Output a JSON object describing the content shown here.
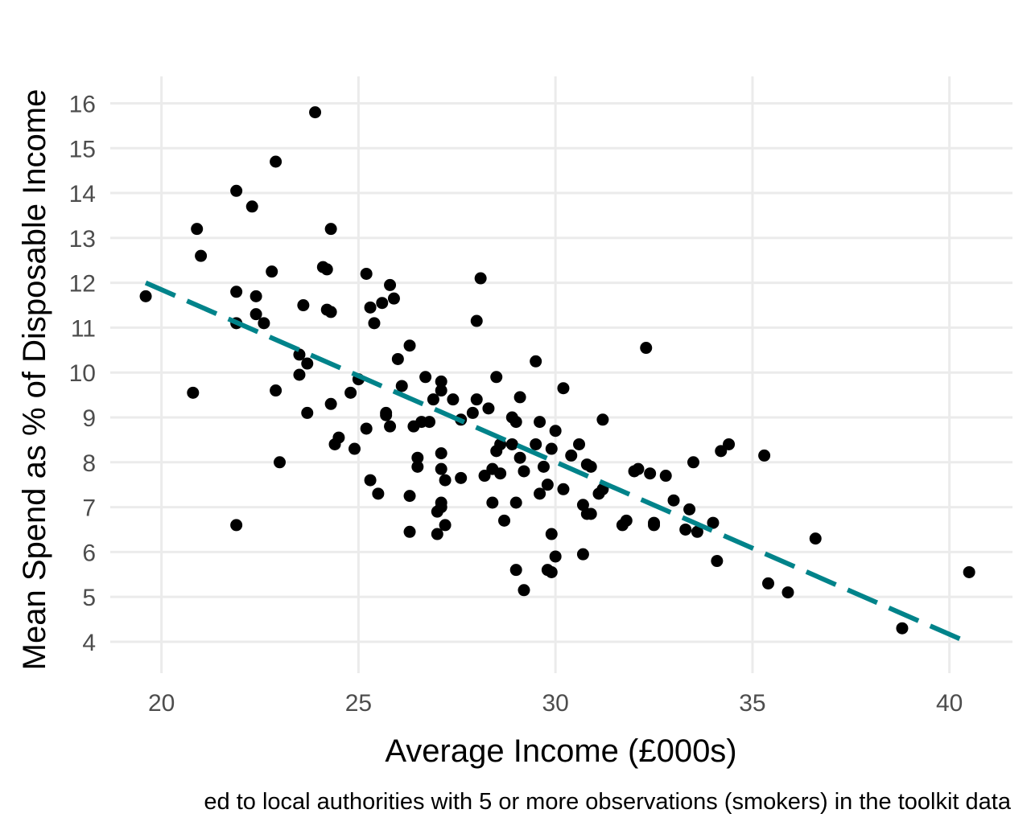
{
  "chart_data": {
    "type": "scatter",
    "xlabel": "Average Income (£000s)",
    "ylabel": "Mean Spend as % of Disposable Income",
    "caption": "ed to local authorities with 5 or more observations (smokers) in the toolkit data",
    "xlim": [
      18.7,
      41.6
    ],
    "ylim": [
      3.3,
      16.6
    ],
    "x_ticks": [
      20,
      25,
      30,
      35,
      40
    ],
    "y_ticks": [
      4,
      5,
      6,
      7,
      8,
      9,
      10,
      11,
      12,
      13,
      14,
      15,
      16
    ],
    "grid": true,
    "point_color": "#000000",
    "trend_line": {
      "style": "dashed",
      "color": "#00838a",
      "x": [
        19.6,
        40.3
      ],
      "y": [
        12.0,
        4.05
      ]
    },
    "points": [
      [
        19.6,
        11.7
      ],
      [
        20.8,
        9.55
      ],
      [
        20.9,
        13.2
      ],
      [
        21.0,
        12.6
      ],
      [
        21.9,
        14.05
      ],
      [
        21.9,
        11.8
      ],
      [
        21.9,
        11.1
      ],
      [
        21.9,
        6.6
      ],
      [
        22.3,
        13.7
      ],
      [
        22.4,
        11.3
      ],
      [
        22.4,
        11.7
      ],
      [
        22.6,
        11.1
      ],
      [
        22.8,
        12.25
      ],
      [
        22.9,
        14.7
      ],
      [
        22.9,
        9.6
      ],
      [
        23.0,
        8.0
      ],
      [
        23.5,
        10.4
      ],
      [
        23.5,
        9.95
      ],
      [
        23.6,
        11.5
      ],
      [
        23.7,
        10.2
      ],
      [
        23.7,
        9.1
      ],
      [
        23.9,
        15.8
      ],
      [
        24.1,
        12.35
      ],
      [
        24.2,
        12.3
      ],
      [
        24.2,
        11.4
      ],
      [
        24.3,
        11.35
      ],
      [
        24.3,
        13.2
      ],
      [
        24.3,
        9.3
      ],
      [
        24.4,
        8.4
      ],
      [
        24.5,
        8.55
      ],
      [
        24.8,
        9.55
      ],
      [
        24.9,
        8.3
      ],
      [
        25.0,
        9.85
      ],
      [
        25.2,
        12.2
      ],
      [
        25.2,
        8.75
      ],
      [
        25.3,
        7.6
      ],
      [
        25.3,
        11.45
      ],
      [
        25.4,
        11.1
      ],
      [
        25.5,
        7.3
      ],
      [
        25.6,
        11.55
      ],
      [
        25.7,
        9.1
      ],
      [
        25.7,
        9.05
      ],
      [
        25.8,
        11.95
      ],
      [
        25.8,
        8.8
      ],
      [
        25.9,
        11.65
      ],
      [
        26.0,
        10.3
      ],
      [
        26.1,
        9.7
      ],
      [
        26.3,
        10.6
      ],
      [
        26.3,
        7.25
      ],
      [
        26.3,
        6.45
      ],
      [
        26.4,
        8.8
      ],
      [
        26.5,
        8.1
      ],
      [
        26.5,
        7.9
      ],
      [
        26.6,
        8.9
      ],
      [
        26.7,
        9.9
      ],
      [
        26.8,
        8.9
      ],
      [
        26.9,
        9.4
      ],
      [
        27.0,
        6.4
      ],
      [
        27.0,
        6.9
      ],
      [
        27.1,
        9.6
      ],
      [
        27.1,
        9.8
      ],
      [
        27.1,
        7.85
      ],
      [
        27.1,
        7.1
      ],
      [
        27.1,
        7.0
      ],
      [
        27.1,
        8.2
      ],
      [
        27.2,
        7.6
      ],
      [
        27.2,
        6.6
      ],
      [
        27.4,
        9.4
      ],
      [
        27.6,
        7.65
      ],
      [
        27.6,
        8.95
      ],
      [
        27.9,
        9.1
      ],
      [
        28.0,
        11.15
      ],
      [
        28.0,
        9.4
      ],
      [
        28.1,
        12.1
      ],
      [
        28.2,
        7.7
      ],
      [
        28.3,
        9.2
      ],
      [
        28.4,
        7.1
      ],
      [
        28.4,
        7.85
      ],
      [
        28.5,
        9.9
      ],
      [
        28.5,
        8.25
      ],
      [
        28.6,
        7.75
      ],
      [
        28.6,
        8.4
      ],
      [
        28.7,
        6.7
      ],
      [
        28.9,
        9.0
      ],
      [
        28.9,
        8.4
      ],
      [
        29.0,
        5.6
      ],
      [
        29.0,
        7.1
      ],
      [
        29.0,
        8.9
      ],
      [
        29.1,
        9.45
      ],
      [
        29.1,
        8.1
      ],
      [
        29.2,
        5.15
      ],
      [
        29.2,
        7.8
      ],
      [
        29.5,
        10.25
      ],
      [
        29.5,
        8.4
      ],
      [
        29.6,
        8.9
      ],
      [
        29.6,
        7.3
      ],
      [
        29.7,
        7.9
      ],
      [
        29.8,
        7.5
      ],
      [
        29.8,
        5.6
      ],
      [
        29.9,
        5.55
      ],
      [
        29.9,
        6.4
      ],
      [
        29.9,
        8.3
      ],
      [
        30.0,
        8.7
      ],
      [
        30.0,
        5.9
      ],
      [
        30.2,
        9.65
      ],
      [
        30.2,
        7.4
      ],
      [
        30.4,
        8.15
      ],
      [
        30.6,
        8.4
      ],
      [
        30.7,
        5.95
      ],
      [
        30.7,
        7.05
      ],
      [
        30.8,
        6.85
      ],
      [
        30.8,
        7.95
      ],
      [
        30.9,
        7.9
      ],
      [
        30.9,
        6.85
      ],
      [
        31.1,
        7.3
      ],
      [
        31.2,
        8.95
      ],
      [
        31.2,
        7.4
      ],
      [
        31.7,
        6.6
      ],
      [
        31.8,
        6.7
      ],
      [
        32.0,
        7.8
      ],
      [
        32.1,
        7.85
      ],
      [
        32.3,
        10.55
      ],
      [
        32.4,
        7.75
      ],
      [
        32.5,
        6.65
      ],
      [
        32.5,
        6.6
      ],
      [
        32.8,
        7.7
      ],
      [
        33.0,
        7.15
      ],
      [
        33.3,
        6.5
      ],
      [
        33.4,
        6.95
      ],
      [
        33.5,
        8.0
      ],
      [
        33.6,
        6.45
      ],
      [
        34.0,
        6.65
      ],
      [
        34.1,
        5.8
      ],
      [
        34.2,
        8.25
      ],
      [
        34.4,
        8.4
      ],
      [
        35.3,
        8.15
      ],
      [
        35.4,
        5.3
      ],
      [
        35.9,
        5.1
      ],
      [
        36.6,
        6.3
      ],
      [
        38.8,
        4.3
      ],
      [
        40.5,
        5.55
      ]
    ]
  }
}
